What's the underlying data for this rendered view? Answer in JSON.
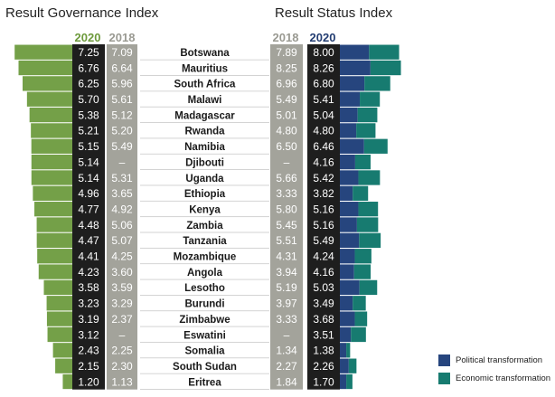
{
  "titles": {
    "governance": "Result Governance Index",
    "status": "Result Status Index"
  },
  "year_labels": {
    "gov_2020": "2020",
    "gov_2018": "2018",
    "status_2018": "2018",
    "status_2020": "2020"
  },
  "colors": {
    "governance_bar": "#74a048",
    "governance_2020_column": "#1e1e1e",
    "col_2018": "#a3a39b",
    "country_column": "#ffffff",
    "status_2020_column": "#1e1e1e",
    "political": "#26457e",
    "economic": "#177b70"
  },
  "chart_data": {
    "type": "bar",
    "title": "",
    "categories": [
      "Botswana",
      "Mauritius",
      "South Africa",
      "Malawi",
      "Madagascar",
      "Rwanda",
      "Namibia",
      "Djibouti",
      "Uganda",
      "Ethiopia",
      "Kenya",
      "Zambia",
      "Tanzania",
      "Mozambique",
      "Angola",
      "Lesotho",
      "Burundi",
      "Zimbabwe",
      "Eswatini",
      "Somalia",
      "South Sudan",
      "Eritrea"
    ],
    "governance_2020": [
      "7.25",
      "6.76",
      "6.25",
      "5.70",
      "5.38",
      "5.21",
      "5.15",
      "5.14",
      "5.14",
      "4.96",
      "4.77",
      "4.48",
      "4.47",
      "4.41",
      "4.23",
      "3.58",
      "3.23",
      "3.19",
      "3.12",
      "2.43",
      "2.15",
      "1.20"
    ],
    "governance_2018": [
      "7.09",
      "6.64",
      "5.96",
      "5.61",
      "5.12",
      "5.20",
      "5.49",
      "–",
      "5.31",
      "3.65",
      "4.92",
      "5.06",
      "5.07",
      "4.25",
      "3.60",
      "3.59",
      "3.29",
      "2.37",
      "–",
      "2.25",
      "2.30",
      "1.13"
    ],
    "status_2018": [
      "7.89",
      "8.25",
      "6.96",
      "5.49",
      "5.01",
      "4.80",
      "6.50",
      "–",
      "5.66",
      "3.33",
      "5.80",
      "5.45",
      "5.51",
      "4.31",
      "3.94",
      "5.19",
      "3.97",
      "3.33",
      "–",
      "1.34",
      "2.27",
      "1.84"
    ],
    "status_2020": [
      "8.00",
      "8.26",
      "6.80",
      "5.41",
      "5.04",
      "4.80",
      "6.46",
      "4.16",
      "5.42",
      "3.82",
      "5.16",
      "5.16",
      "5.49",
      "4.24",
      "4.16",
      "5.03",
      "3.49",
      "3.68",
      "3.51",
      "1.38",
      "2.26",
      "1.70"
    ],
    "series": [
      {
        "name": "Political transformation",
        "values": [
          8.2,
          8.6,
          6.9,
          5.6,
          5.0,
          4.6,
          6.8,
          4.3,
          5.2,
          3.6,
          5.2,
          4.8,
          5.4,
          4.2,
          4.0,
          5.5,
          3.6,
          4.2,
          3.1,
          1.8,
          2.5,
          1.8
        ]
      },
      {
        "name": "Economic transformation",
        "values": [
          7.8,
          7.9,
          6.7,
          5.2,
          5.1,
          5.0,
          6.1,
          4.0,
          5.6,
          4.0,
          5.1,
          5.5,
          5.6,
          4.3,
          4.3,
          4.6,
          3.4,
          3.2,
          3.9,
          1.0,
          2.0,
          1.6
        ]
      }
    ],
    "legend": {
      "position": "bottom-right",
      "items": [
        "Political transformation",
        "Economic transformation"
      ]
    }
  }
}
